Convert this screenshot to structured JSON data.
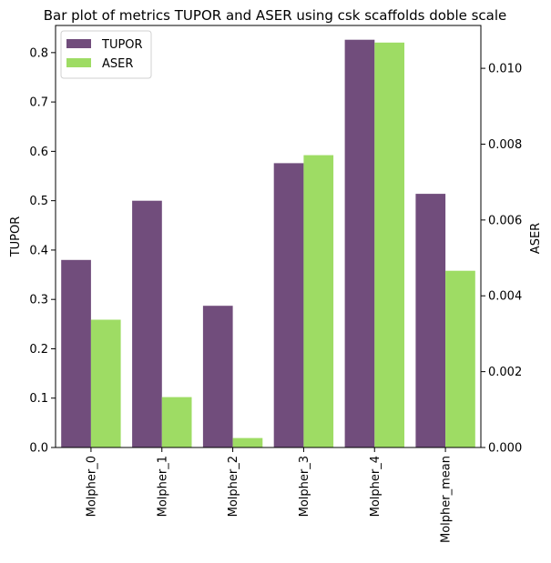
{
  "chart_data": {
    "type": "bar",
    "title": "Bar plot of metrics TUPOR and ASER using csk scaffolds doble scale",
    "categories": [
      "Molpher_0",
      "Molpher_1",
      "Molpher_2",
      "Molpher_3",
      "Molpher_4",
      "Molpher_mean"
    ],
    "series": [
      {
        "name": "TUPOR",
        "axis": "left",
        "color": "#714d7c",
        "values": [
          0.38,
          0.5,
          0.287,
          0.576,
          0.826,
          0.514
        ]
      },
      {
        "name": "ASER",
        "axis": "right",
        "color": "#9edc64",
        "values": [
          0.00337,
          0.00133,
          0.00025,
          0.00771,
          0.01068,
          0.00466
        ]
      }
    ],
    "ylabel_left": "TUPOR",
    "ylabel_right": "ASER",
    "ylim_left": [
      0,
      0.855
    ],
    "ylim_right": [
      0,
      0.01113
    ],
    "yticks_left": [
      "0.0",
      "0.1",
      "0.2",
      "0.3",
      "0.4",
      "0.5",
      "0.6",
      "0.7",
      "0.8"
    ],
    "yticks_left_values": [
      0,
      0.1,
      0.2,
      0.3,
      0.4,
      0.5,
      0.6,
      0.7,
      0.8
    ],
    "yticks_right": [
      "0.000",
      "0.002",
      "0.004",
      "0.006",
      "0.008",
      "0.010"
    ],
    "yticks_right_values": [
      0,
      0.002,
      0.004,
      0.006,
      0.008,
      0.01
    ],
    "legend": {
      "position": "top-left",
      "entries": [
        "TUPOR",
        "ASER"
      ]
    },
    "grid": false
  }
}
